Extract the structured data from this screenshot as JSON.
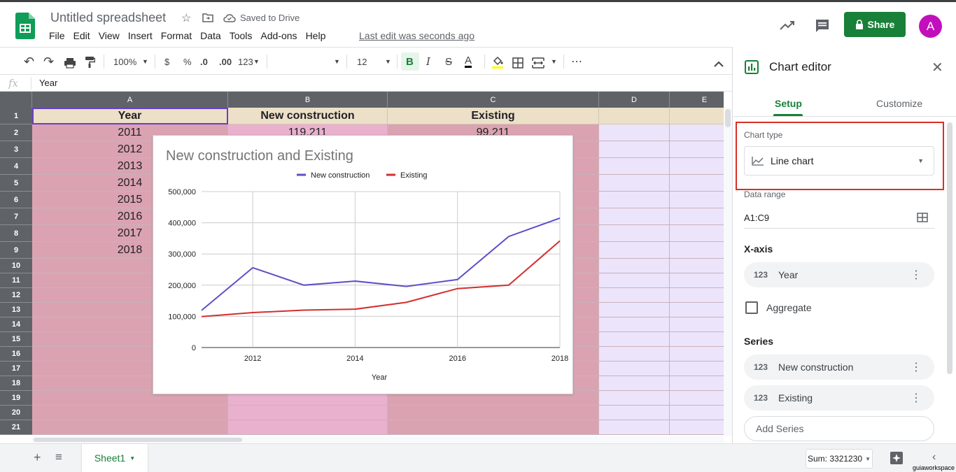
{
  "app": {
    "doc_title": "Untitled spreadsheet",
    "saved_status": "Saved to Drive",
    "menu": [
      "File",
      "Edit",
      "View",
      "Insert",
      "Format",
      "Data",
      "Tools",
      "Add-ons",
      "Help"
    ],
    "last_edit": "Last edit was seconds ago",
    "share_label": "Share",
    "avatar_letter": "A"
  },
  "toolbar": {
    "zoom": "100%",
    "currency": "$",
    "percent": "%",
    "dec_less": ".0",
    "dec_more": ".00",
    "more_formats": "123",
    "font_size": "12",
    "bold": "B",
    "italic": "I",
    "strike": "S",
    "text_color": "A",
    "more": "⋯"
  },
  "formula_bar": {
    "fx": "fx",
    "value": "Year"
  },
  "grid": {
    "columns": [
      "A",
      "B",
      "C",
      "D",
      "E"
    ],
    "rows": [
      "1",
      "2",
      "3",
      "4",
      "5",
      "6",
      "7",
      "8",
      "9",
      "10",
      "11",
      "12",
      "13",
      "14",
      "15",
      "16",
      "17",
      "18",
      "19",
      "20",
      "21"
    ],
    "header_row": [
      "Year",
      "New construction",
      "Existing"
    ],
    "years": [
      "2011",
      "2012",
      "2013",
      "2014",
      "2015",
      "2016",
      "2017",
      "2018"
    ],
    "b2": "119,211",
    "c2": "99,211"
  },
  "chart_data": {
    "type": "line",
    "title": "New construction and Existing",
    "xlabel": "Year",
    "ylabel": "",
    "x": [
      2011,
      2012,
      2013,
      2014,
      2015,
      2016,
      2017,
      2018
    ],
    "x_ticks": [
      "2012",
      "2014",
      "2016",
      "2018"
    ],
    "y_ticks": [
      "0",
      "100,000",
      "200,000",
      "300,000",
      "400,000",
      "500,000"
    ],
    "ylim": [
      0,
      500000
    ],
    "legend": "top",
    "grid": true,
    "series": [
      {
        "name": "New construction",
        "color": "#5c4fc7",
        "values": [
          119211,
          256000,
          200000,
          213000,
          196000,
          218000,
          356000,
          415000
        ]
      },
      {
        "name": "Existing",
        "color": "#d32f2f",
        "values": [
          99211,
          112000,
          120000,
          123000,
          145000,
          189000,
          200000,
          342000
        ]
      }
    ]
  },
  "bottom": {
    "sheet_tab": "Sheet1",
    "sum": "Sum: 3321230",
    "watermark": "guiaworkspace"
  },
  "chart_editor": {
    "title": "Chart editor",
    "tab_setup": "Setup",
    "tab_customize": "Customize",
    "chart_type_label": "Chart type",
    "chart_type_value": "Line chart",
    "data_range_label": "Data range",
    "data_range_value": "A1:C9",
    "xaxis_label": "X-axis",
    "xaxis_value": "Year",
    "num_badge": "123",
    "aggregate_label": "Aggregate",
    "series_label": "Series",
    "series_items": [
      "New construction",
      "Existing"
    ],
    "add_series": "Add Series"
  },
  "colors": {
    "accent": "#188038",
    "col_a_fill": "#dba3b2",
    "col_b_fill": "#e9b1ce",
    "col_c_fill": "#dba3b2",
    "col_de_fill": "#ece4fa",
    "header_fill": "#ede0c8",
    "highlight_box": "#d93025"
  }
}
